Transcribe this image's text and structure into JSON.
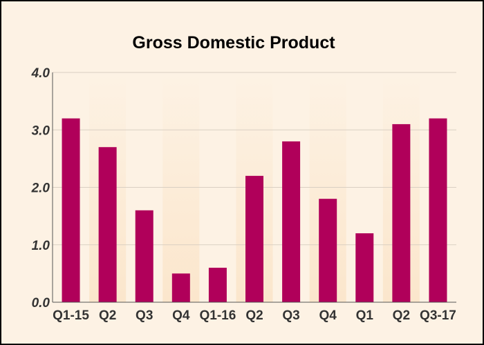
{
  "chart_data": {
    "type": "bar",
    "title": "Gross Domestic Product",
    "xlabel": "",
    "ylabel": "",
    "categories": [
      "Q1-15",
      "Q2",
      "Q3",
      "Q4",
      "Q1-16",
      "Q2",
      "Q3",
      "Q4",
      "Q1",
      "Q2",
      "Q3-17"
    ],
    "values": [
      3.2,
      2.7,
      1.6,
      0.5,
      0.6,
      2.2,
      2.8,
      1.8,
      1.2,
      3.1,
      3.2
    ],
    "ylim": [
      0,
      4
    ],
    "yticks": [
      "0.0",
      "1.0",
      "2.0",
      "3.0",
      "4.0"
    ],
    "grid": true,
    "legend": "none",
    "colors": {
      "bar": "#b0005a",
      "band_light": "#fdf2e4",
      "band_dark": "#fbe6cc",
      "grid": "#d9cfc2",
      "axis": "#555555"
    }
  }
}
